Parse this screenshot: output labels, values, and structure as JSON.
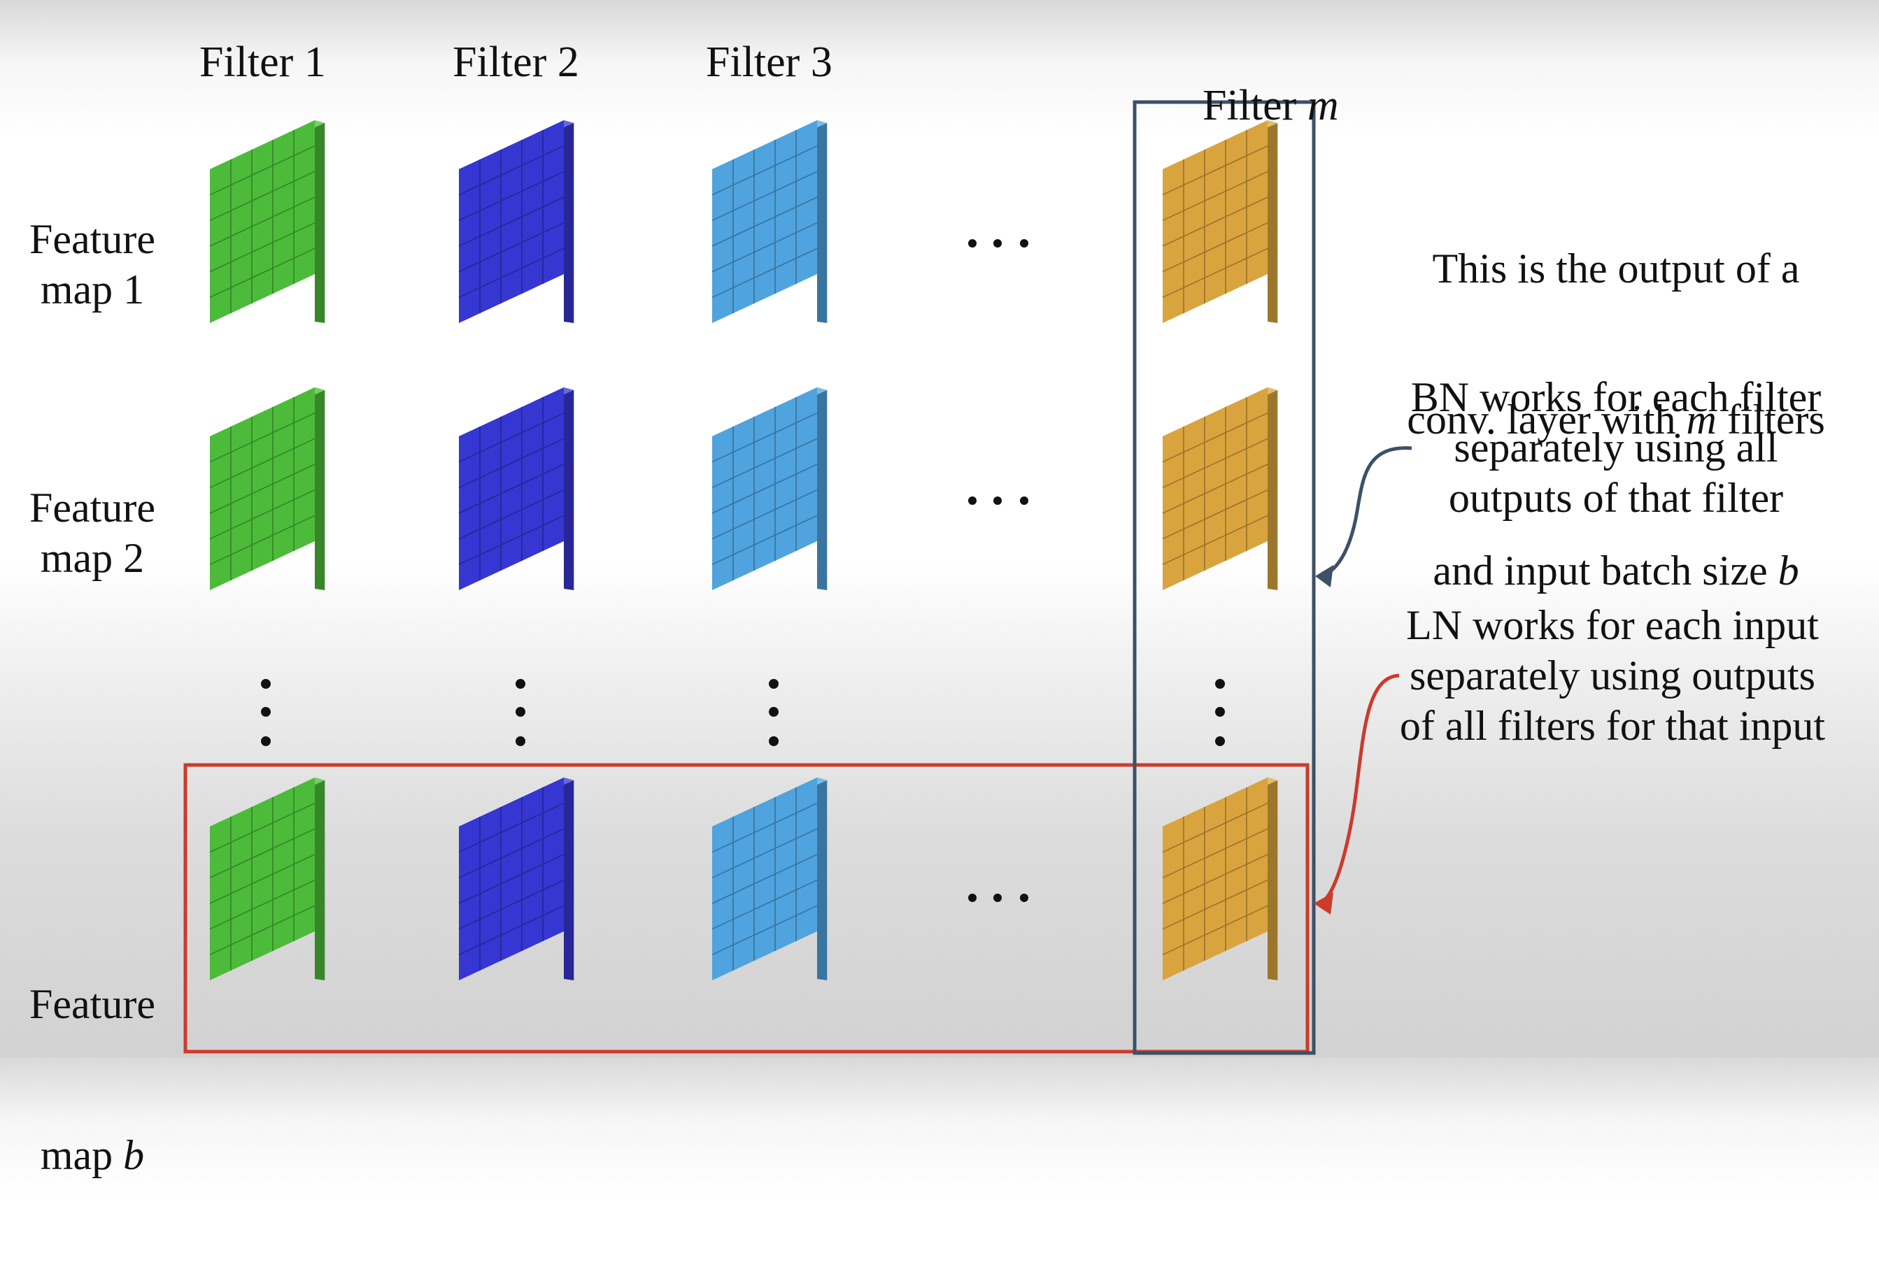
{
  "colors": {
    "filter_1": "#4cbb3a",
    "filter_2": "#3636d2",
    "filter_3": "#4fa3de",
    "filter_m": "#d9a43e",
    "bn_box": "#3c5068",
    "ln_box": "#cc3a2a"
  },
  "columns": [
    {
      "label": "Filter 1",
      "var": ""
    },
    {
      "label": "Filter 2",
      "var": ""
    },
    {
      "label": "Filter 3",
      "var": ""
    },
    {
      "label": "Filter ",
      "var": "m"
    }
  ],
  "rows": [
    {
      "line1": "Feature",
      "line2_text": "map 1",
      "line2_var": ""
    },
    {
      "line1": "Feature",
      "line2_text": "map 2",
      "line2_var": ""
    },
    {
      "line1": "Feature",
      "line2_text": "map ",
      "line2_var": "b"
    }
  ],
  "notes": {
    "intro": {
      "line1": "This is the output of a",
      "line2_pre": "conv. layer with ",
      "line2_var": "m",
      "line2_post": " filters",
      "line3_pre": "and input batch size ",
      "line3_var": "b"
    },
    "bn": {
      "line1": "BN works for each filter",
      "line2": "separately using all",
      "line3": "outputs of that filter"
    },
    "ln": {
      "line1": "LN works for each input",
      "line2": "separately using outputs",
      "line3": "of all filters for that input"
    }
  },
  "icons": [
    "horizontal-ellipsis-icon",
    "vertical-ellipsis-icon",
    "arrow-icon"
  ]
}
